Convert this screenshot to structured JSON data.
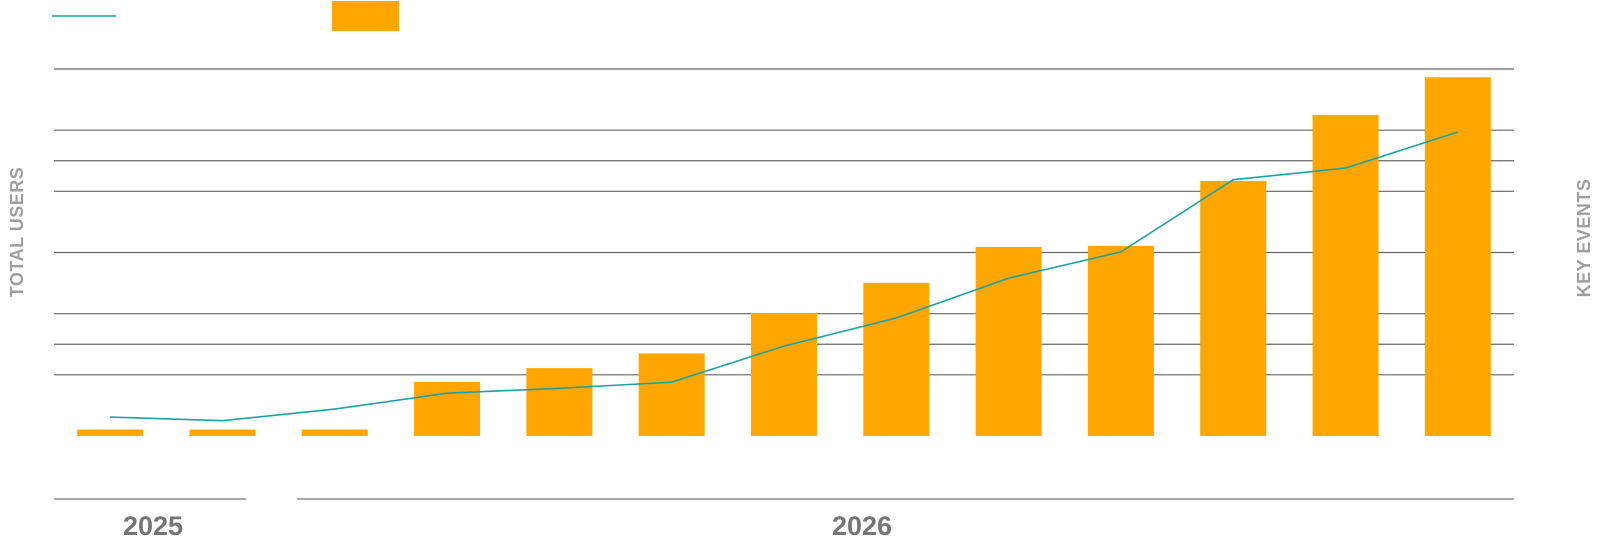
{
  "chart_data": {
    "type": "bar-line",
    "y_axis_label": "TOTAL USERS",
    "y2_axis_label": "KEY EVENTS",
    "year_labels": [
      "2025",
      "2026"
    ],
    "categories": [
      null,
      null,
      null,
      null,
      null,
      null,
      null,
      null,
      null,
      null,
      null,
      null,
      null
    ],
    "ylim": [
      0,
      6
    ],
    "yticks": [
      1,
      2,
      3,
      4,
      5,
      6
    ],
    "y2lim": [
      0,
      4
    ],
    "y2ticks": [
      1,
      3
    ],
    "grid": true,
    "series": [
      {
        "type": "line",
        "color": "#1aa3a6",
        "values": [
          0.31,
          0.25,
          0.44,
          0.7,
          0.78,
          0.88,
          1.47,
          1.93,
          2.58,
          3.01,
          4.19,
          4.38,
          4.97
        ]
      },
      {
        "type": "bar",
        "axis": "y2",
        "color": "#ffa600",
        "values": [
          0.07,
          0.07,
          0.07,
          0.59,
          0.74,
          0.9,
          1.34,
          1.67,
          2.06,
          2.07,
          2.78,
          3.5,
          3.91
        ]
      }
    ]
  }
}
